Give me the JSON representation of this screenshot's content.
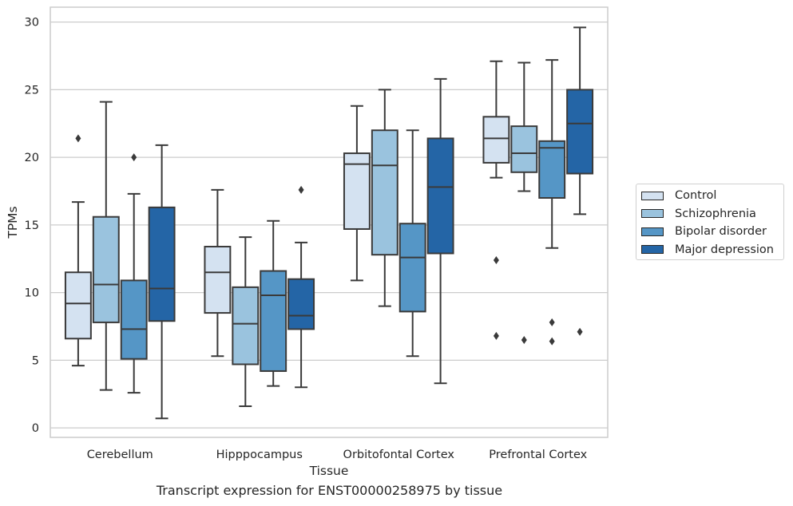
{
  "chart_data": {
    "type": "boxplot",
    "title": "",
    "caption": "Transcript expression for ENST00000258975 by tissue",
    "xlabel": "Tissue",
    "ylabel": "TPMs",
    "ylim": [
      -0.7,
      31.1
    ],
    "yticks": [
      0,
      5,
      10,
      15,
      20,
      25,
      30
    ],
    "grid": true,
    "legend_position": "right",
    "categories": [
      "Cerebellum",
      "Hipppocampus",
      "Orbitofontal Cortex",
      "Prefrontal Cortex"
    ],
    "series": [
      {
        "name": "Control",
        "color": "#d4e2f1",
        "boxes": [
          {
            "whisker_low": 4.6,
            "q1": 6.6,
            "median": 9.2,
            "q3": 11.5,
            "whisker_high": 16.7,
            "outliers": [
              21.4
            ]
          },
          {
            "whisker_low": 5.3,
            "q1": 8.5,
            "median": 11.5,
            "q3": 13.4,
            "whisker_high": 17.6,
            "outliers": []
          },
          {
            "whisker_low": 10.9,
            "q1": 14.7,
            "median": 19.5,
            "q3": 20.3,
            "whisker_high": 23.8,
            "outliers": []
          },
          {
            "whisker_low": 18.5,
            "q1": 19.6,
            "median": 21.4,
            "q3": 23.0,
            "whisker_high": 27.1,
            "outliers": [
              12.4,
              6.8
            ]
          }
        ]
      },
      {
        "name": "Schizophrenia",
        "color": "#9ac3de",
        "boxes": [
          {
            "whisker_low": 2.8,
            "q1": 7.8,
            "median": 10.6,
            "q3": 15.6,
            "whisker_high": 24.1,
            "outliers": []
          },
          {
            "whisker_low": 1.6,
            "q1": 4.7,
            "median": 7.7,
            "q3": 10.4,
            "whisker_high": 14.1,
            "outliers": []
          },
          {
            "whisker_low": 9.0,
            "q1": 12.8,
            "median": 19.4,
            "q3": 22.0,
            "whisker_high": 25.0,
            "outliers": []
          },
          {
            "whisker_low": 17.5,
            "q1": 18.9,
            "median": 20.3,
            "q3": 22.3,
            "whisker_high": 27.0,
            "outliers": [
              6.5
            ]
          }
        ]
      },
      {
        "name": "Bipolar disorder",
        "color": "#5596c6",
        "boxes": [
          {
            "whisker_low": 2.6,
            "q1": 5.1,
            "median": 7.3,
            "q3": 10.9,
            "whisker_high": 17.3,
            "outliers": [
              20.0
            ]
          },
          {
            "whisker_low": 3.1,
            "q1": 4.2,
            "median": 9.8,
            "q3": 11.6,
            "whisker_high": 15.3,
            "outliers": []
          },
          {
            "whisker_low": 5.3,
            "q1": 8.6,
            "median": 12.6,
            "q3": 15.1,
            "whisker_high": 22.0,
            "outliers": []
          },
          {
            "whisker_low": 13.3,
            "q1": 17.0,
            "median": 20.7,
            "q3": 21.2,
            "whisker_high": 27.2,
            "outliers": [
              7.8,
              6.4
            ]
          }
        ]
      },
      {
        "name": "Major depression",
        "color": "#2465a6",
        "boxes": [
          {
            "whisker_low": 0.7,
            "q1": 7.9,
            "median": 10.3,
            "q3": 16.3,
            "whisker_high": 20.9,
            "outliers": []
          },
          {
            "whisker_low": 3.0,
            "q1": 7.3,
            "median": 8.3,
            "q3": 11.0,
            "whisker_high": 13.7,
            "outliers": [
              17.6
            ]
          },
          {
            "whisker_low": 3.3,
            "q1": 12.9,
            "median": 17.8,
            "q3": 21.4,
            "whisker_high": 25.8,
            "outliers": []
          },
          {
            "whisker_low": 15.8,
            "q1": 18.8,
            "median": 22.5,
            "q3": 25.0,
            "whisker_high": 29.6,
            "outliers": [
              7.1
            ]
          }
        ]
      }
    ]
  }
}
